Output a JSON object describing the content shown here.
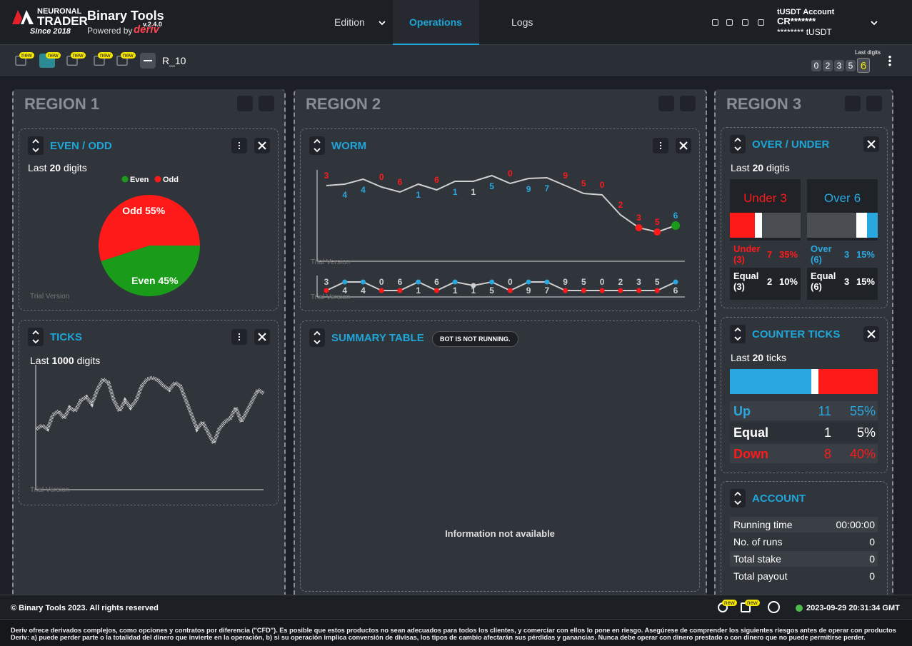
{
  "header": {
    "logo_top": "NEURONAL",
    "logo_main": "TRADER",
    "since": "Since 2018",
    "app_name": "Binary Tools",
    "version": "v.2.4.0",
    "powered_by": "Powered by",
    "deriv": "deriv",
    "nav": [
      "Edition",
      "Operations",
      "Logs"
    ],
    "account_type": "tUSDT Account",
    "account_id": "CR*******",
    "balance": "******** tUSDT"
  },
  "toolbar": {
    "new_badge": "new",
    "symbol": "R_10",
    "last_digits_label": "Last digits",
    "last_digits": [
      0,
      2,
      3,
      5,
      6
    ]
  },
  "regions": [
    "REGION 1",
    "REGION 2",
    "REGION 3"
  ],
  "trial": "Trial Version",
  "even_odd": {
    "title": "EVEN / ODD",
    "last": "Last",
    "count": 20,
    "unit": "digits",
    "chart": {
      "type": "pie",
      "categories": [
        "Even",
        "Odd"
      ],
      "values": [
        45,
        55
      ],
      "value_labels": [
        "Even 45%",
        "Odd 55%"
      ],
      "colors": [
        "#1a9c1a",
        "#ff1a1a"
      ]
    }
  },
  "ticks": {
    "title": "TICKS",
    "last": "Last",
    "count": 1000,
    "unit": "digits",
    "chart": {
      "type": "line",
      "color": "#cfcfcf",
      "ylim": [
        0,
        175
      ],
      "values": [
        85,
        90,
        85,
        105,
        110,
        100,
        115,
        110,
        125,
        130,
        120,
        140,
        155,
        150,
        125,
        110,
        125,
        115,
        125,
        145,
        155,
        157,
        153,
        145,
        140,
        150,
        145,
        125,
        105,
        85,
        95,
        80,
        65,
        85,
        95,
        100,
        115,
        95,
        110,
        125,
        140,
        135
      ]
    }
  },
  "worm": {
    "title": "WORM",
    "chart": {
      "type": "line",
      "ylim": [
        0,
        100
      ],
      "digits": [
        3,
        4,
        4,
        0,
        6,
        1,
        6,
        1,
        1,
        5,
        0,
        9,
        7,
        9,
        5,
        0,
        2,
        3,
        5,
        6
      ],
      "values": [
        71,
        73,
        80,
        69,
        62,
        73,
        65,
        77,
        77,
        85,
        74,
        81,
        82,
        71,
        60,
        58,
        30,
        12,
        6,
        15
      ]
    }
  },
  "summary": {
    "title": "SUMMARY TABLE",
    "status": "BOT IS NOT RUNNING.",
    "empty": "Information not available"
  },
  "over_under": {
    "title": "OVER / UNDER",
    "last": "Last",
    "count": 20,
    "unit": "digtis",
    "boxes": [
      {
        "head": "Under",
        "digit": 3,
        "color": "#ff1a1a",
        "main": {
          "label": "Under (3)",
          "count": 7,
          "percent": 35,
          "percent_label": "35%"
        },
        "equal": {
          "label": "Equal (3)",
          "count": 2,
          "percent": 10,
          "percent_label": "10%"
        }
      },
      {
        "head": "Over",
        "digit": 6,
        "color": "#29a8e0",
        "main": {
          "label": "Over (6)",
          "count": 3,
          "percent": 15,
          "percent_label": "15%"
        },
        "equal": {
          "label": "Equal (6)",
          "count": 3,
          "percent": 15,
          "percent_label": "15%"
        }
      }
    ]
  },
  "counter": {
    "title": "COUNTER TICKS",
    "last": "Last",
    "count": 20,
    "unit": "ticks",
    "rows": [
      {
        "label": "Up",
        "color": "#29a8e0",
        "count": 11,
        "percent": 55,
        "percent_label": "55%"
      },
      {
        "label": "Equal",
        "color": "#ffffff",
        "count": 1,
        "percent": 5,
        "percent_label": "5%"
      },
      {
        "label": "Down",
        "color": "#ff1a1a",
        "count": 8,
        "percent": 40,
        "percent_label": "40%"
      }
    ]
  },
  "account": {
    "title": "ACCOUNT",
    "rows": [
      [
        "Running time",
        "00:00:00"
      ],
      [
        "No. of runs",
        0
      ],
      [
        "Total stake",
        0
      ],
      [
        "Total payout",
        0
      ]
    ]
  },
  "footer": {
    "copyright": "© Binary Tools 2023. All rights reserved",
    "timestamp": "2023-09-29 20:31:34 GMT",
    "disclaimer": "Deriv ofrece derivados complejos, como opciones y contratos por diferencia (\"CFD\"). Es posible que estos productos no sean adecuados para todos los clientes, y comerciar con ellos lo pone en riesgo. Asegúrese de comprender los siguientes riesgos antes de operar con productos Deriv: a) puede perder parte o la totalidad del dinero que invierte en la operación, b) si su operación implica conversión de divisas, los tipos de cambio afectarán sus pérdidas y ganancias. Nunca debe operar con dinero prestado o con dinero que no puede permitirse perder."
  }
}
